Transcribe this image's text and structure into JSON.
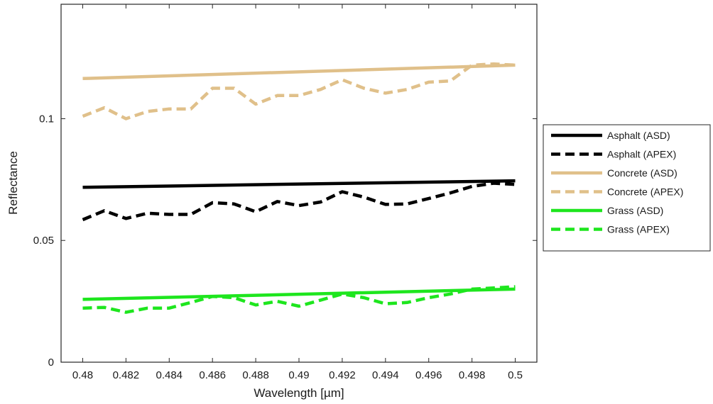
{
  "chart_data": {
    "type": "line",
    "title": "",
    "xlabel": "Wavelength [µm]",
    "ylabel": "Reflectance",
    "xlim": [
      0.479,
      0.501
    ],
    "ylim": [
      0,
      0.147
    ],
    "xticks": [
      0.48,
      0.482,
      0.484,
      0.486,
      0.488,
      0.49,
      0.492,
      0.494,
      0.496,
      0.498,
      0.5
    ],
    "xtick_labels": [
      "0.48",
      "0.482",
      "0.484",
      "0.486",
      "0.488",
      "0.49",
      "0.492",
      "0.494",
      "0.496",
      "0.498",
      "0.5"
    ],
    "yticks": [
      0,
      0.05,
      0.1
    ],
    "ytick_labels": [
      "0",
      "0.05",
      "0.1"
    ],
    "grid": false,
    "legend_position": "outside-right",
    "series": [
      {
        "name": "Asphalt (ASD)",
        "color": "#000000",
        "dash": "solid",
        "x": [
          0.48,
          0.5
        ],
        "y": [
          0.0718,
          0.0745
        ]
      },
      {
        "name": "Asphalt (APEX)",
        "color": "#000000",
        "dash": "dashed",
        "x": [
          0.48,
          0.481,
          0.482,
          0.483,
          0.484,
          0.485,
          0.486,
          0.487,
          0.488,
          0.489,
          0.49,
          0.491,
          0.492,
          0.493,
          0.494,
          0.495,
          0.496,
          0.497,
          0.498,
          0.499,
          0.5
        ],
        "y": [
          0.0585,
          0.0622,
          0.059,
          0.0612,
          0.0607,
          0.0607,
          0.0655,
          0.065,
          0.0618,
          0.066,
          0.0643,
          0.0658,
          0.07,
          0.0678,
          0.0648,
          0.065,
          0.0672,
          0.0695,
          0.0722,
          0.0735,
          0.073
        ]
      },
      {
        "name": "Concrete (ASD)",
        "color": "#e0c08a",
        "dash": "solid",
        "x": [
          0.48,
          0.5
        ],
        "y": [
          0.1165,
          0.122
        ]
      },
      {
        "name": "Concrete (APEX)",
        "color": "#e0c08a",
        "dash": "dashed",
        "x": [
          0.48,
          0.481,
          0.482,
          0.483,
          0.484,
          0.485,
          0.486,
          0.487,
          0.488,
          0.489,
          0.49,
          0.491,
          0.492,
          0.493,
          0.494,
          0.495,
          0.496,
          0.497,
          0.498,
          0.499,
          0.5
        ],
        "y": [
          0.101,
          0.1045,
          0.1,
          0.103,
          0.104,
          0.104,
          0.1125,
          0.1125,
          0.106,
          0.1095,
          0.1095,
          0.112,
          0.116,
          0.1125,
          0.1105,
          0.112,
          0.115,
          0.1155,
          0.122,
          0.1225,
          0.122
        ]
      },
      {
        "name": "Grass (ASD)",
        "color": "#1ee61e",
        "dash": "solid",
        "x": [
          0.48,
          0.5
        ],
        "y": [
          0.0258,
          0.03
        ]
      },
      {
        "name": "Grass (APEX)",
        "color": "#1ee61e",
        "dash": "dashed",
        "x": [
          0.48,
          0.481,
          0.482,
          0.483,
          0.484,
          0.485,
          0.486,
          0.487,
          0.488,
          0.489,
          0.49,
          0.491,
          0.492,
          0.493,
          0.494,
          0.495,
          0.496,
          0.497,
          0.498,
          0.499,
          0.5
        ],
        "y": [
          0.0222,
          0.0225,
          0.0205,
          0.0222,
          0.0222,
          0.0245,
          0.027,
          0.0265,
          0.0235,
          0.025,
          0.023,
          0.0255,
          0.028,
          0.0265,
          0.024,
          0.0245,
          0.0265,
          0.028,
          0.03,
          0.0305,
          0.031
        ]
      }
    ]
  }
}
